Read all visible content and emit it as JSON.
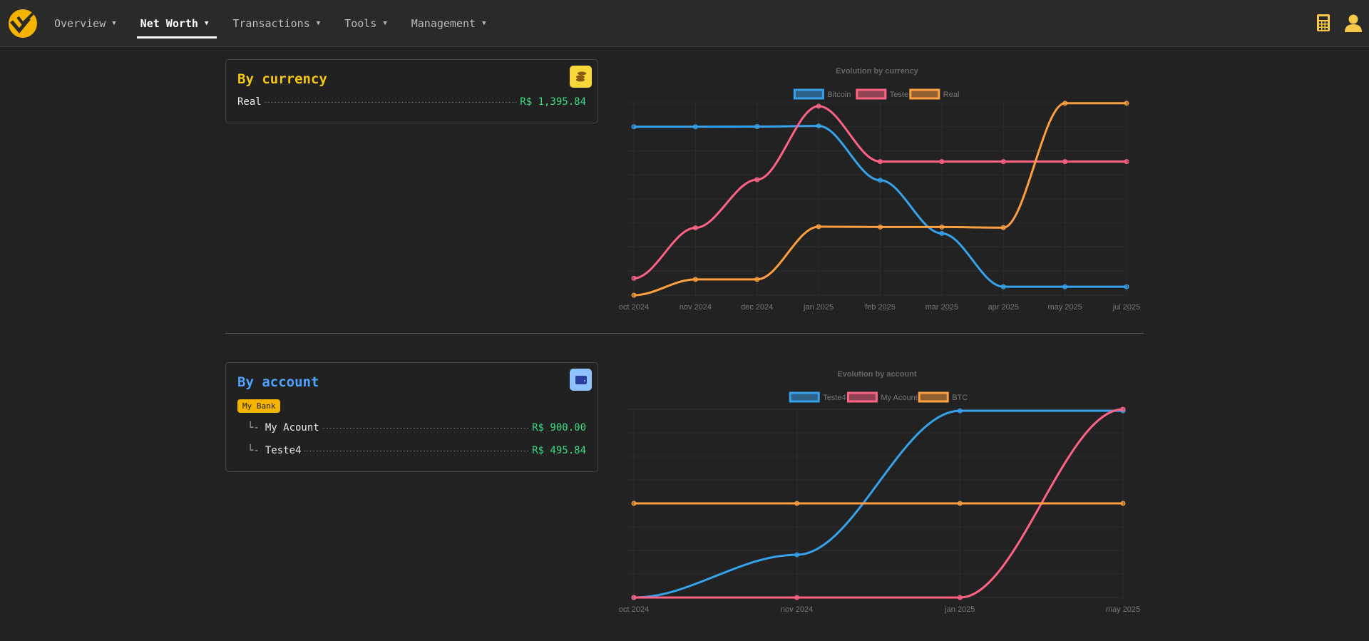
{
  "nav": {
    "items": [
      {
        "label": "Overview",
        "active": false
      },
      {
        "label": "Net Worth",
        "active": true
      },
      {
        "label": "Transactions",
        "active": false
      },
      {
        "label": "Tools",
        "active": false
      },
      {
        "label": "Management",
        "active": false
      }
    ],
    "right_icons": [
      "calculator-icon",
      "user-icon"
    ],
    "accent": "#f5b400"
  },
  "by_currency": {
    "title": "By currency",
    "title_color": "#f5c518",
    "icon": "coins-icon",
    "rows": [
      {
        "label": "Real",
        "value": "R$ 1,395.84"
      }
    ]
  },
  "by_account": {
    "title": "By account",
    "title_color": "#4da3ff",
    "icon": "wallet-icon",
    "group": "My Bank",
    "rows": [
      {
        "prefix": "└-",
        "label": "My Acount",
        "value": "R$ 900.00"
      },
      {
        "prefix": "└-",
        "label": "Teste4",
        "value": "R$ 495.84"
      }
    ]
  },
  "chart_data": [
    {
      "type": "line",
      "title": "Evolution by currency",
      "legend": "top",
      "grid": true,
      "y_axis_labels": "none",
      "y_scale": "relative (no ticks shown)",
      "categories": [
        "oct 2024",
        "nov 2024",
        "dec 2024",
        "jan 2025",
        "feb 2025",
        "mar 2025",
        "apr 2025",
        "may 2025",
        "jul 2025"
      ],
      "series": [
        {
          "name": "Bitcoin",
          "color": "#36a2eb",
          "values": [
            0.875,
            0.875,
            0.876,
            0.879,
            0.597,
            0.321,
            0.044,
            0.044,
            0.044
          ]
        },
        {
          "name": "Teste",
          "color": "#ff6384",
          "values": [
            0.088,
            0.35,
            0.6,
            0.982,
            0.694,
            0.694,
            0.694,
            0.694,
            0.694
          ]
        },
        {
          "name": "Real",
          "color": "#ff9f40",
          "values": [
            0,
            0.082,
            0.082,
            0.356,
            0.354,
            0.354,
            0.351,
            0.997,
            0.997
          ]
        }
      ]
    },
    {
      "type": "line",
      "title": "Evolution by account",
      "legend": "top",
      "grid": true,
      "y_axis_labels": "none",
      "y_scale": "relative (no ticks shown)",
      "categories": [
        "oct 2024",
        "nov 2024",
        "jan 2025",
        "may 2025"
      ],
      "series": [
        {
          "name": "Teste4",
          "color": "#36a2eb",
          "values": [
            0,
            0.227,
            0.992,
            0.992
          ]
        },
        {
          "name": "My Acount",
          "color": "#ff6384",
          "values": [
            0,
            0,
            0,
            1.0
          ]
        },
        {
          "name": "BTC",
          "color": "#ff9f40",
          "values": [
            0.5,
            0.5,
            0.5,
            0.5
          ]
        }
      ]
    }
  ]
}
